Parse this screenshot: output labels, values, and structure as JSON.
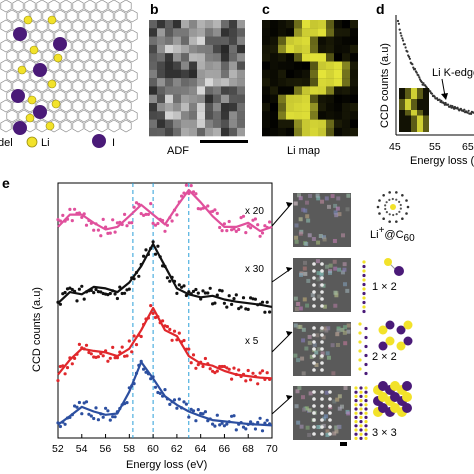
{
  "panels": {
    "b": {
      "letter": "b",
      "label": "ADF"
    },
    "c": {
      "letter": "c",
      "label": "Li map"
    },
    "d": {
      "letter": "d",
      "xlabel": "Energy loss (eV)",
      "ylabel": "CCD counts (a.u)",
      "annotation": "Li K-edge",
      "xticks": [
        "45",
        "55",
        "65"
      ]
    },
    "e": {
      "letter": "e"
    }
  },
  "legend_a": {
    "li": "Li",
    "i": "I",
    "model": "Model"
  },
  "structures": [
    {
      "label_main": "Li",
      "label_sup": "+",
      "label_rest": "@C",
      "label_sub": "60"
    },
    {
      "label": "1 × 2"
    },
    {
      "label": "2 × 2"
    },
    {
      "label": "3 × 3"
    }
  ],
  "colors": {
    "pink": "#e0509c",
    "black": "#111111",
    "red": "#e0282c",
    "blue": "#2c4fa0",
    "dashed": "#2a9fd8",
    "li": "#f2e22a",
    "iodine": "#4a1a78",
    "map": "#e8e83a"
  },
  "chart_data": {
    "type": "scatter",
    "xlabel": "Energy loss (eV)",
    "ylabel": "CCD counts (a.u)",
    "xlim": [
      52,
      70
    ],
    "xticks": [
      52,
      54,
      56,
      58,
      60,
      62,
      64,
      66,
      68,
      70
    ],
    "vlines": [
      58.3,
      60.0,
      63.0
    ],
    "series": [
      {
        "color": "pink",
        "multiplier": "x 20",
        "x": [
          52,
          53,
          54,
          55,
          56,
          57,
          58,
          59,
          60,
          61,
          62,
          63,
          64,
          65,
          66,
          67,
          68,
          69,
          70
        ],
        "y": [
          0.55,
          0.7,
          0.7,
          0.6,
          0.52,
          0.55,
          0.68,
          0.82,
          0.7,
          0.58,
          0.8,
          1.0,
          0.85,
          0.68,
          0.55,
          0.55,
          0.6,
          0.5,
          0.55
        ]
      },
      {
        "color": "black",
        "multiplier": "x 30",
        "x": [
          52,
          53,
          54,
          55,
          56,
          57,
          58,
          59,
          60,
          61,
          62,
          63,
          64,
          65,
          66,
          67,
          68,
          69,
          70
        ],
        "y": [
          0.2,
          0.35,
          0.32,
          0.42,
          0.4,
          0.35,
          0.48,
          0.7,
          1.0,
          0.7,
          0.4,
          0.32,
          0.28,
          0.3,
          0.25,
          0.22,
          0.2,
          0.18,
          0.15
        ]
      },
      {
        "color": "red",
        "multiplier": "x 5",
        "x": [
          52,
          53,
          54,
          55,
          56,
          57,
          58,
          59,
          60,
          61,
          62,
          63,
          64,
          65,
          66,
          67,
          68,
          69,
          70
        ],
        "y": [
          0.1,
          0.3,
          0.45,
          0.42,
          0.4,
          0.35,
          0.45,
          0.7,
          1.0,
          0.7,
          0.62,
          0.35,
          0.25,
          0.22,
          0.15,
          0.1,
          0.08,
          0.06,
          0.05
        ]
      },
      {
        "color": "blue",
        "multiplier": "",
        "x": [
          52,
          53,
          54,
          55,
          56,
          57,
          58,
          59,
          60,
          61,
          62,
          63,
          64,
          65,
          66,
          67,
          68,
          69,
          70
        ],
        "y": [
          0.05,
          0.18,
          0.32,
          0.25,
          0.2,
          0.22,
          0.55,
          1.0,
          0.75,
          0.48,
          0.35,
          0.25,
          0.18,
          0.12,
          0.1,
          0.08,
          0.06,
          0.05,
          0.04
        ]
      }
    ]
  }
}
